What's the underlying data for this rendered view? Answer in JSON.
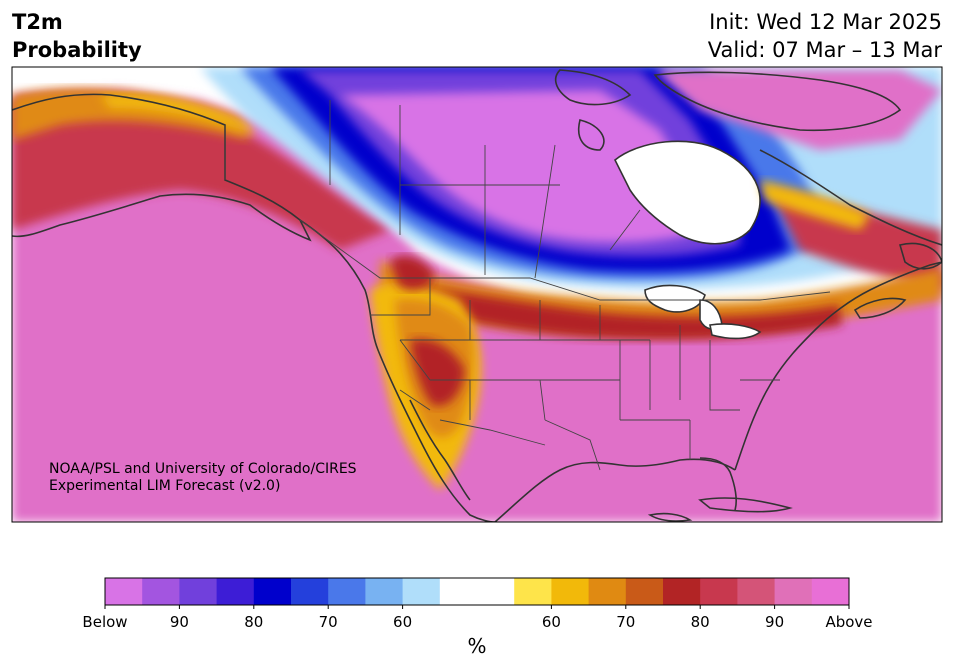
{
  "header": {
    "title_line1": "T2m",
    "title_line2": "Probability",
    "init_text": "Init: Wed 12 Mar 2025",
    "valid_text": "Valid: 07 Mar – 13 Mar"
  },
  "credit": {
    "line1": "NOAA/PSL and University of Colorado/CIRES",
    "line2": "Experimental LIM Forecast (v2.0)"
  },
  "colorbar": {
    "units": "%",
    "ticks": [
      "Below",
      "90",
      "80",
      "70",
      "60",
      "60",
      "70",
      "80",
      "90",
      "Above"
    ],
    "colors": [
      "#d873e6",
      "#a355e0",
      "#7140dc",
      "#3d1dd6",
      "#0000cc",
      "#2440dc",
      "#4a78ea",
      "#78b2f2",
      "#b0defa",
      "#ffffff",
      "#ffffff",
      "#fee44a",
      "#f2b90a",
      "#e08a12",
      "#c95a18",
      "#b22425",
      "#c8384e",
      "#d45478",
      "#e070b8",
      "#e86fd6"
    ]
  },
  "map": {
    "region": "North America",
    "palette": {
      "below_strong": "#d873e6",
      "below_mid": "#7140dc",
      "below_core": "#0000cc",
      "below_weak": "#78b2f2",
      "neutral": "#ffffff",
      "above_weak": "#fee44a",
      "above_mid": "#e08a12",
      "above_core": "#b22425",
      "above_strong": "#e070c8",
      "coast": "#333333"
    }
  }
}
